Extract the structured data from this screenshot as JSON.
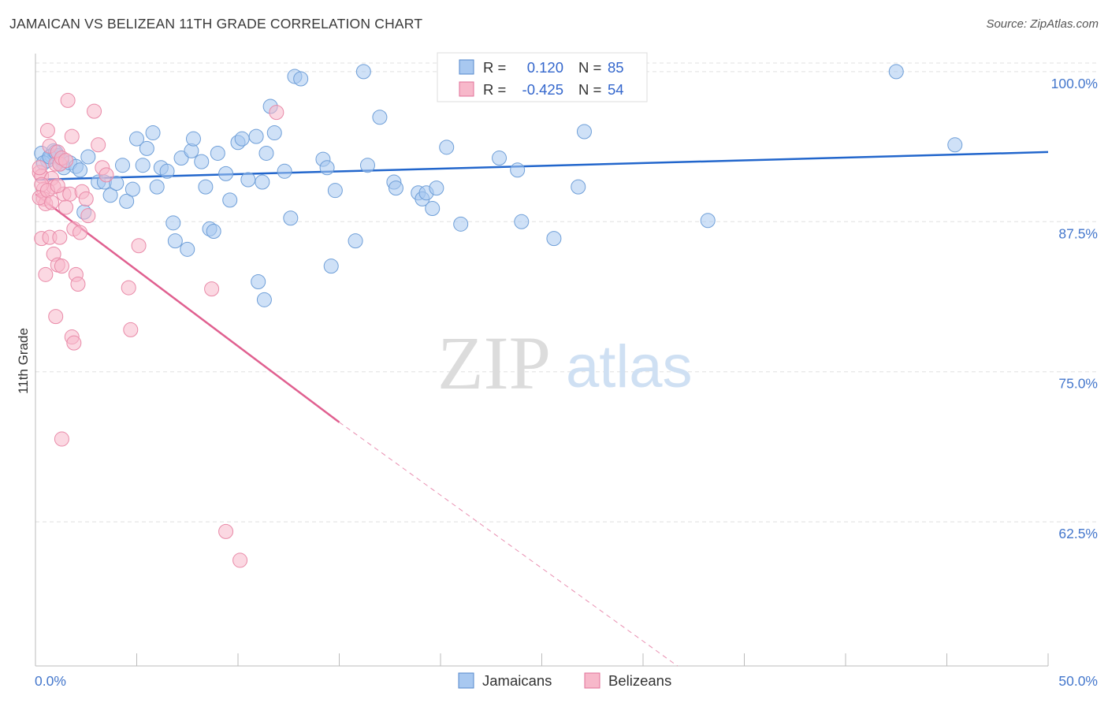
{
  "title": "JAMAICAN VS BELIZEAN 11TH GRADE CORRELATION CHART",
  "source": "Source: ZipAtlas.com",
  "watermark": {
    "zip": "ZIP",
    "atlas": "atlas"
  },
  "colors": {
    "jamaicans_fill": "#a8c8f0",
    "jamaicans_line": "#2266cc",
    "belizeans_fill": "#f7b8ca",
    "belizeans_line": "#e06090",
    "tick_text": "#4477cc",
    "grid": "#e0e0e0"
  },
  "stats": {
    "jamaicans": {
      "r_label": "R =",
      "r_value": "0.120",
      "n_label": "N =",
      "n_value": "85"
    },
    "belizeans": {
      "r_label": "R =",
      "r_value": "-0.425",
      "n_label": "N =",
      "n_value": "54"
    }
  },
  "chart_data": {
    "type": "scatter",
    "title": "JAMAICAN VS BELIZEAN 11TH GRADE CORRELATION CHART",
    "xlabel": "",
    "ylabel": "11th Grade",
    "xlim": [
      0,
      50
    ],
    "ylim": [
      50.5,
      101.5
    ],
    "x_tick_labels": [
      "0.0%",
      "50.0%"
    ],
    "y_ticks": [
      62.5,
      75.0,
      87.5,
      100.0
    ],
    "y_tick_labels": [
      "62.5%",
      "75.0%",
      "87.5%",
      "100.0%"
    ],
    "grid": "horizontal dashed",
    "legend_position": "bottom-center",
    "series": [
      {
        "name": "Jamaicans",
        "trend": {
          "x": [
            0,
            50
          ],
          "y": [
            91.0,
            93.3
          ],
          "solid_until": 50
        },
        "points": [
          [
            0.3,
            93.2
          ],
          [
            0.6,
            92.6
          ],
          [
            0.8,
            93.0
          ],
          [
            0.9,
            93.4
          ],
          [
            1.1,
            93.0
          ],
          [
            1.3,
            92.6
          ],
          [
            1.4,
            92.0
          ],
          [
            1.7,
            92.4
          ],
          [
            2.0,
            92.1
          ],
          [
            2.2,
            91.8
          ],
          [
            2.6,
            92.9
          ],
          [
            2.4,
            88.3
          ],
          [
            3.1,
            90.8
          ],
          [
            3.4,
            90.8
          ],
          [
            3.7,
            89.7
          ],
          [
            4.0,
            90.7
          ],
          [
            4.3,
            92.2
          ],
          [
            4.5,
            89.2
          ],
          [
            4.8,
            90.2
          ],
          [
            5.0,
            94.4
          ],
          [
            5.3,
            92.2
          ],
          [
            5.5,
            93.6
          ],
          [
            5.8,
            94.9
          ],
          [
            6.0,
            90.4
          ],
          [
            6.2,
            92.0
          ],
          [
            6.5,
            91.7
          ],
          [
            6.8,
            87.4
          ],
          [
            6.9,
            85.9
          ],
          [
            7.2,
            92.8
          ],
          [
            7.5,
            85.2
          ],
          [
            7.7,
            93.4
          ],
          [
            7.8,
            94.4
          ],
          [
            8.2,
            92.5
          ],
          [
            8.4,
            90.4
          ],
          [
            8.6,
            86.9
          ],
          [
            8.8,
            86.7
          ],
          [
            9.0,
            93.2
          ],
          [
            9.4,
            91.5
          ],
          [
            9.6,
            89.3
          ],
          [
            10.0,
            94.1
          ],
          [
            10.2,
            94.4
          ],
          [
            10.5,
            91.0
          ],
          [
            10.9,
            94.6
          ],
          [
            11.2,
            90.8
          ],
          [
            11.4,
            93.2
          ],
          [
            11.6,
            97.1
          ],
          [
            11.8,
            94.9
          ],
          [
            12.3,
            91.7
          ],
          [
            12.6,
            87.8
          ],
          [
            12.8,
            99.6
          ],
          [
            13.1,
            99.4
          ],
          [
            11.3,
            81.0
          ],
          [
            11.0,
            82.5
          ],
          [
            14.2,
            92.7
          ],
          [
            14.4,
            92.0
          ],
          [
            14.6,
            83.8
          ],
          [
            14.8,
            90.1
          ],
          [
            15.8,
            85.9
          ],
          [
            16.2,
            100.0
          ],
          [
            16.4,
            92.2
          ],
          [
            17.0,
            96.2
          ],
          [
            17.7,
            90.8
          ],
          [
            17.8,
            90.3
          ],
          [
            18.9,
            89.9
          ],
          [
            19.1,
            89.4
          ],
          [
            19.3,
            89.9
          ],
          [
            19.6,
            88.6
          ],
          [
            19.8,
            90.3
          ],
          [
            20.3,
            93.7
          ],
          [
            21.0,
            87.3
          ],
          [
            22.9,
            92.8
          ],
          [
            23.8,
            91.8
          ],
          [
            24.0,
            87.5
          ],
          [
            25.6,
            86.1
          ],
          [
            26.6,
            100.0
          ],
          [
            26.8,
            90.4
          ],
          [
            27.1,
            95.0
          ],
          [
            29.1,
            98.3
          ],
          [
            33.2,
            87.6
          ],
          [
            42.5,
            100.0
          ],
          [
            45.4,
            93.9
          ],
          [
            0.4,
            92.4
          ],
          [
            0.7,
            92.9
          ],
          [
            1.0,
            93.3
          ],
          [
            1.2,
            92.3
          ]
        ]
      },
      {
        "name": "Belizeans",
        "trend": {
          "x": [
            0,
            15.0,
            31.7
          ],
          "y": [
            89.8,
            70.8,
            50.5
          ],
          "solid_until": 15.0
        },
        "points": [
          [
            0.2,
            91.6
          ],
          [
            0.3,
            91.3
          ],
          [
            0.4,
            90.2
          ],
          [
            0.4,
            89.4
          ],
          [
            0.5,
            89.0
          ],
          [
            0.6,
            95.1
          ],
          [
            0.7,
            93.8
          ],
          [
            0.8,
            91.1
          ],
          [
            0.9,
            90.4
          ],
          [
            1.0,
            92.3
          ],
          [
            1.1,
            93.3
          ],
          [
            1.2,
            92.3
          ],
          [
            1.3,
            92.8
          ],
          [
            1.4,
            89.8
          ],
          [
            1.5,
            92.6
          ],
          [
            1.6,
            97.6
          ],
          [
            1.7,
            89.8
          ],
          [
            1.8,
            94.6
          ],
          [
            1.9,
            86.9
          ],
          [
            2.0,
            83.1
          ],
          [
            2.1,
            82.3
          ],
          [
            2.2,
            86.6
          ],
          [
            2.3,
            90.0
          ],
          [
            2.5,
            89.4
          ],
          [
            2.6,
            88.0
          ],
          [
            2.9,
            96.7
          ],
          [
            3.1,
            93.9
          ],
          [
            3.3,
            92.0
          ],
          [
            3.5,
            91.4
          ],
          [
            0.3,
            86.1
          ],
          [
            0.5,
            83.1
          ],
          [
            0.7,
            86.2
          ],
          [
            0.9,
            84.8
          ],
          [
            1.1,
            83.9
          ],
          [
            1.3,
            83.8
          ],
          [
            1.0,
            79.6
          ],
          [
            1.8,
            77.9
          ],
          [
            1.9,
            77.4
          ],
          [
            4.6,
            82.0
          ],
          [
            4.7,
            78.5
          ],
          [
            5.1,
            85.5
          ],
          [
            8.7,
            81.9
          ],
          [
            11.9,
            96.6
          ],
          [
            1.3,
            69.4
          ],
          [
            9.4,
            61.7
          ],
          [
            10.1,
            59.3
          ],
          [
            0.2,
            92.0
          ],
          [
            0.3,
            90.6
          ],
          [
            0.2,
            89.5
          ],
          [
            0.6,
            90.1
          ],
          [
            0.8,
            89.1
          ],
          [
            1.1,
            90.5
          ],
          [
            1.2,
            86.2
          ],
          [
            1.5,
            88.7
          ]
        ]
      }
    ]
  }
}
